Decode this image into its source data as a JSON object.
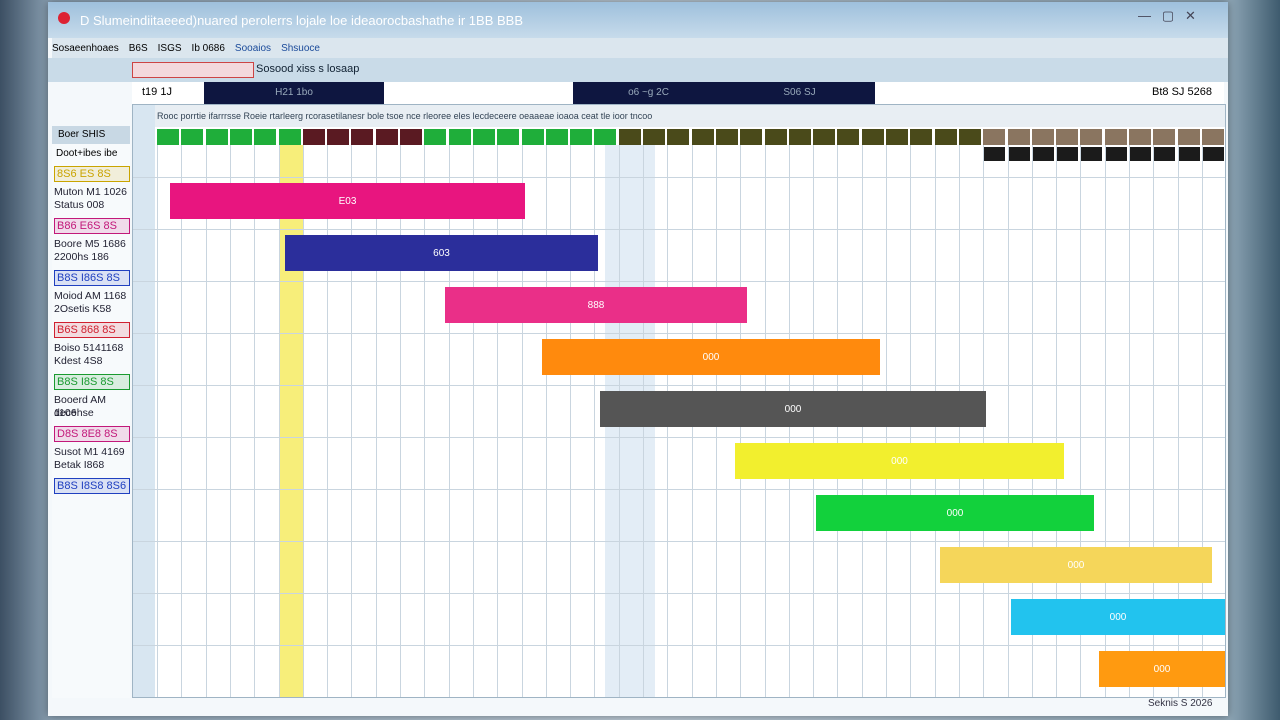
{
  "window": {
    "title": "D Slumeindiitaeeed)nuared perolerrs lojale loe ideaorocbashathe ir 1BB BBB"
  },
  "toolbar": {
    "tabs": [
      "Sosaeenhoaes",
      "B6S",
      "ISGS",
      "Ib 0686",
      "Sooaios",
      "Shsuoce"
    ],
    "filter": "Sosood xiss s losaap"
  },
  "header": {
    "range_left": "t19 1J",
    "band_1": "H21 1bo",
    "band_2": "o6 ~g 2C",
    "band_3": "S06 SJ",
    "right": "Bt8 SJ 5268",
    "columns_text": "Rooc porrtie ifarrrsse  Roeie rtarleerg rcorasetilanesr bole tsoe nce rleoree  eles lecdeceere  oeaaeae ioaoa ceat  tle ioor  tncoo"
  },
  "sidebar": {
    "heading": "Boer SHIS",
    "subheading": "Doot+ibes ibe",
    "items": [
      {
        "tag": "8S6 ES 8S",
        "name": "Muton M1 1026",
        "detail": "Status 008"
      },
      {
        "tag": "B86 E6S 8S",
        "name": "Boore M5 1686",
        "detail": "2200hs 186"
      },
      {
        "tag": "B8S I86S 8S",
        "name": "Moiod AM 1168",
        "detail": "2Osetis K58"
      },
      {
        "tag": "B6S 868 8S",
        "name": "Boiso 5141168",
        "detail": "Kdest 4S8"
      },
      {
        "tag": "B8S I8S 8S",
        "name": "Booerd AM 1106",
        "detail": "decehse"
      },
      {
        "tag": "D8S 8E8 8S",
        "name": "Susot M1 4169",
        "detail": "Betak I868"
      },
      {
        "tag": "B8S I8S8 8S6"
      }
    ]
  },
  "tasks": [
    {
      "label": "E03"
    },
    {
      "label": "603"
    },
    {
      "label": "888"
    },
    {
      "label": "000"
    },
    {
      "label": "000"
    },
    {
      "label": "000"
    },
    {
      "label": "000"
    },
    {
      "label": "000"
    },
    {
      "label": "000"
    },
    {
      "label": "000"
    }
  ],
  "footer": "Seknis S 2026"
}
